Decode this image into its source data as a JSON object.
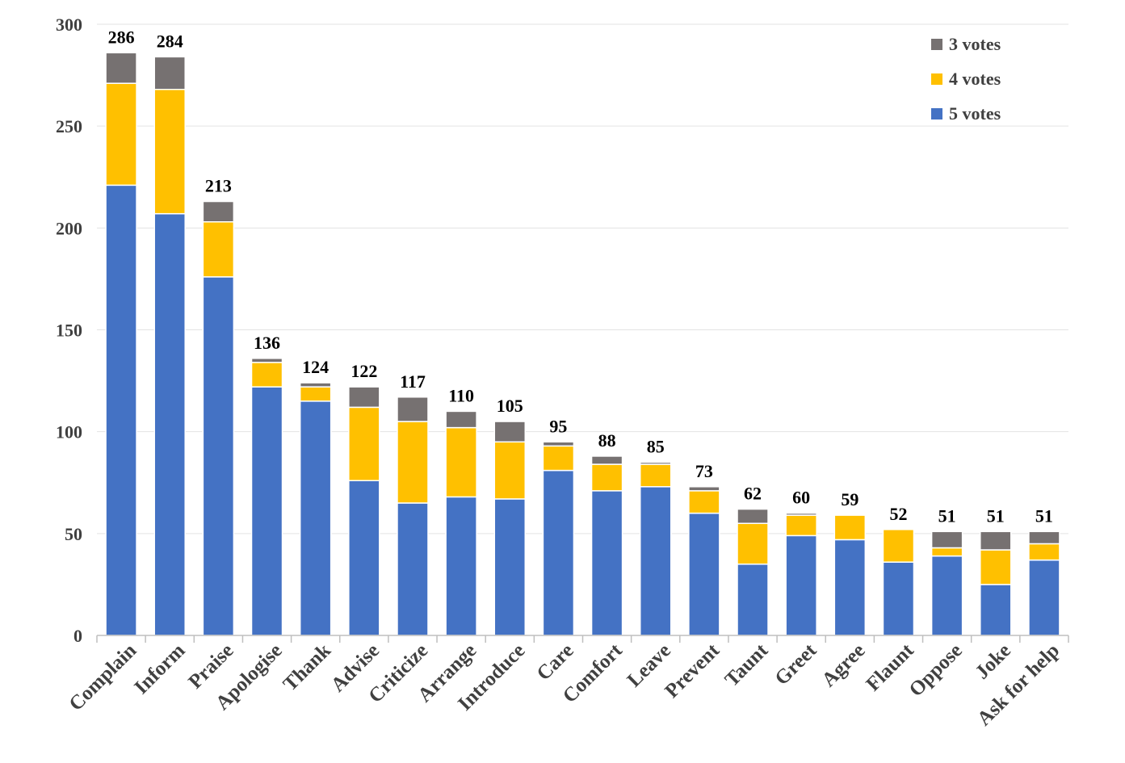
{
  "chart_data": {
    "type": "bar",
    "stacked": true,
    "title": "",
    "xlabel": "",
    "ylabel": "",
    "ylim": [
      0,
      300
    ],
    "yticks": [
      0,
      50,
      100,
      150,
      200,
      250,
      300
    ],
    "grid": true,
    "legend_position": "top-right",
    "categories": [
      "Complain",
      "Inform",
      "Praise",
      "Apologise",
      "Thank",
      "Advise",
      "Criticize",
      "Arrange",
      "Introduce",
      "Care",
      "Comfort",
      "Leave",
      "Prevent",
      "Taunt",
      "Greet",
      "Agree",
      "Flaunt",
      "Oppose",
      "Joke",
      "Ask for help"
    ],
    "series": [
      {
        "name": "5 votes",
        "color": "#4472C4",
        "values": [
          221,
          207,
          176,
          122,
          115,
          76,
          65,
          68,
          67,
          81,
          71,
          73,
          60,
          35,
          49,
          47,
          36,
          39,
          25,
          37
        ]
      },
      {
        "name": "4 votes",
        "color": "#FFC000",
        "values": [
          50,
          61,
          27,
          12,
          7,
          36,
          40,
          34,
          28,
          12,
          13,
          11,
          11,
          20,
          10,
          12,
          16,
          4,
          17,
          8
        ]
      },
      {
        "name": "3 votes",
        "color": "#767171",
        "values": [
          15,
          16,
          10,
          2,
          2,
          10,
          12,
          8,
          10,
          2,
          4,
          1,
          2,
          7,
          1,
          0,
          0,
          8,
          9,
          6
        ]
      }
    ],
    "totals": [
      286,
      284,
      213,
      136,
      124,
      122,
      117,
      110,
      105,
      95,
      88,
      85,
      73,
      62,
      60,
      59,
      52,
      51,
      51,
      51
    ],
    "legend": [
      "3 votes",
      "4 votes",
      "5 votes"
    ]
  }
}
